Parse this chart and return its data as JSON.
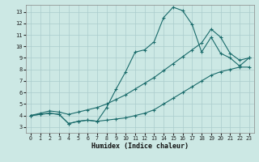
{
  "xlabel": "Humidex (Indice chaleur)",
  "bg_color": "#cce8e4",
  "grid_color": "#aacccc",
  "line_color": "#1a6b6b",
  "xlim": [
    -0.5,
    23.5
  ],
  "ylim": [
    2.5,
    13.6
  ],
  "xticks": [
    0,
    1,
    2,
    3,
    4,
    5,
    6,
    7,
    8,
    9,
    10,
    11,
    12,
    13,
    14,
    15,
    16,
    17,
    18,
    19,
    20,
    21,
    22,
    23
  ],
  "yticks": [
    3,
    4,
    5,
    6,
    7,
    8,
    9,
    10,
    11,
    12,
    13
  ],
  "line1_x": [
    0,
    1,
    2,
    3,
    4,
    5,
    6,
    7,
    8,
    9,
    10,
    11,
    12,
    13,
    14,
    15,
    16,
    17,
    18,
    19,
    20,
    21,
    22,
    23
  ],
  "line1_y": [
    4.0,
    4.1,
    4.2,
    4.1,
    3.3,
    3.5,
    3.6,
    3.5,
    4.7,
    6.3,
    7.8,
    9.5,
    9.7,
    10.4,
    12.5,
    13.4,
    13.1,
    11.9,
    9.5,
    10.8,
    9.4,
    9.0,
    8.3,
    9.0
  ],
  "line2_x": [
    0,
    1,
    2,
    3,
    4,
    5,
    6,
    7,
    8,
    9,
    10,
    11,
    12,
    13,
    14,
    15,
    16,
    17,
    18,
    19,
    20,
    21,
    22,
    23
  ],
  "line2_y": [
    4.0,
    4.2,
    4.4,
    4.3,
    4.1,
    4.3,
    4.5,
    4.7,
    5.0,
    5.4,
    5.8,
    6.3,
    6.8,
    7.3,
    7.9,
    8.5,
    9.1,
    9.7,
    10.3,
    11.5,
    10.8,
    9.4,
    8.8,
    9.0
  ],
  "line3_x": [
    0,
    1,
    2,
    3,
    4,
    5,
    6,
    7,
    8,
    9,
    10,
    11,
    12,
    13,
    14,
    15,
    16,
    17,
    18,
    19,
    20,
    21,
    22,
    23
  ],
  "line3_y": [
    4.0,
    4.1,
    4.2,
    4.1,
    3.3,
    3.5,
    3.6,
    3.5,
    3.6,
    3.7,
    3.8,
    4.0,
    4.2,
    4.5,
    5.0,
    5.5,
    6.0,
    6.5,
    7.0,
    7.5,
    7.8,
    8.0,
    8.2,
    8.2
  ]
}
